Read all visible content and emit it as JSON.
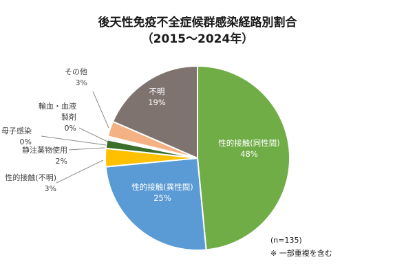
{
  "chart_data": {
    "type": "pie",
    "title": "後天性免疫不全症候群感染経路別割合",
    "subtitle": "（2015～2024年）",
    "slices": [
      {
        "name": "性的接触(同性間)",
        "label_name": [
          "性的接触(同性間)"
        ],
        "pct_label": "48%",
        "value": 48.5,
        "color": "#70ad47"
      },
      {
        "name": "性的接触(異性間)",
        "label_name": [
          "性的接触(異性間)"
        ],
        "pct_label": "25%",
        "value": 25.0,
        "color": "#5b9bd5"
      },
      {
        "name": "性的接触(不明)",
        "label_name": [
          "性的接触(不明)"
        ],
        "pct_label": "3%",
        "value": 3.2,
        "color": "#ffc000"
      },
      {
        "name": "静注薬物使用",
        "label_name": [
          "静注薬物使用"
        ],
        "pct_label": "2%",
        "value": 1.5,
        "color": "#3a6e2a"
      },
      {
        "name": "母子感染",
        "label_name": [
          "母子感染"
        ],
        "pct_label": "0%",
        "value": 0.3,
        "color": "#8faadc"
      },
      {
        "name": "輸血・血液製剤",
        "label_name": [
          "輸血・血液",
          "製剤"
        ],
        "pct_label": "0%",
        "value": 0.3,
        "color": "#e8e8e8"
      },
      {
        "name": "その他",
        "label_name": [
          "その他"
        ],
        "pct_label": "3%",
        "value": 2.7,
        "color": "#f4b183"
      },
      {
        "name": "不明",
        "label_name": [
          "不明"
        ],
        "pct_label": "19%",
        "value": 18.5,
        "color": "#7f7370"
      }
    ]
  },
  "notes": {
    "n": "(n=135)",
    "duplicate": "※ 一部重複を含む"
  }
}
